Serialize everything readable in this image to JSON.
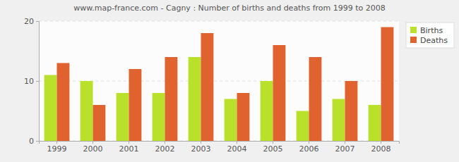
{
  "chart_data": {
    "type": "bar",
    "title": "www.map-france.com - Cagny : Number of births and deaths from 1999 to 2008",
    "categories": [
      "1999",
      "2000",
      "2001",
      "2002",
      "2003",
      "2004",
      "2005",
      "2006",
      "2007",
      "2008"
    ],
    "series": [
      {
        "name": "Births",
        "color": "#b9e02a",
        "values": [
          11,
          10,
          8,
          8,
          14,
          7,
          10,
          5,
          7,
          6
        ]
      },
      {
        "name": "Deaths",
        "color": "#e0622e",
        "values": [
          13,
          6,
          12,
          14,
          18,
          8,
          16,
          14,
          10,
          19
        ]
      }
    ],
    "ylim": [
      0,
      20
    ],
    "yticks": [
      0,
      10,
      20
    ],
    "grid": true,
    "legend": "upper right"
  }
}
